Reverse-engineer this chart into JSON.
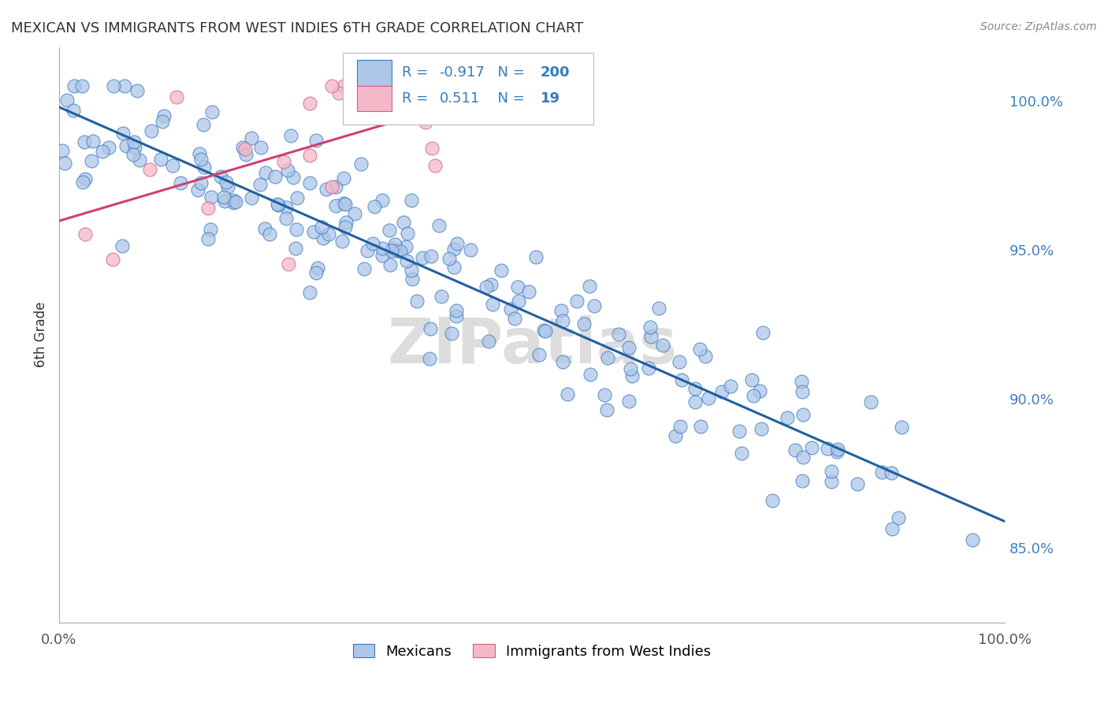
{
  "title": "MEXICAN VS IMMIGRANTS FROM WEST INDIES 6TH GRADE CORRELATION CHART",
  "source": "Source: ZipAtlas.com",
  "ylabel": "6th Grade",
  "watermark": "ZIPatlas",
  "blue_R": "-0.917",
  "blue_N": "200",
  "pink_R": "0.511",
  "pink_N": "19",
  "ytick_labels": [
    "100.0%",
    "95.0%",
    "90.0%",
    "85.0%"
  ],
  "ytick_values": [
    1.0,
    0.95,
    0.9,
    0.85
  ],
  "xlim": [
    0.0,
    1.0
  ],
  "ylim": [
    0.825,
    1.018
  ],
  "blue_fill": "#aec6e8",
  "blue_edge": "#3a7bbf",
  "blue_line": "#2060a0",
  "pink_fill": "#f4b8c8",
  "pink_edge": "#d06080",
  "pink_line": "#d04070",
  "background_color": "#ffffff",
  "grid_color": "#cccccc",
  "title_color": "#333333",
  "right_label_color": "#4080c0",
  "legend_text_color": "#3a7bbf",
  "legend_N_color": "#3a7bbf",
  "seed": 17
}
